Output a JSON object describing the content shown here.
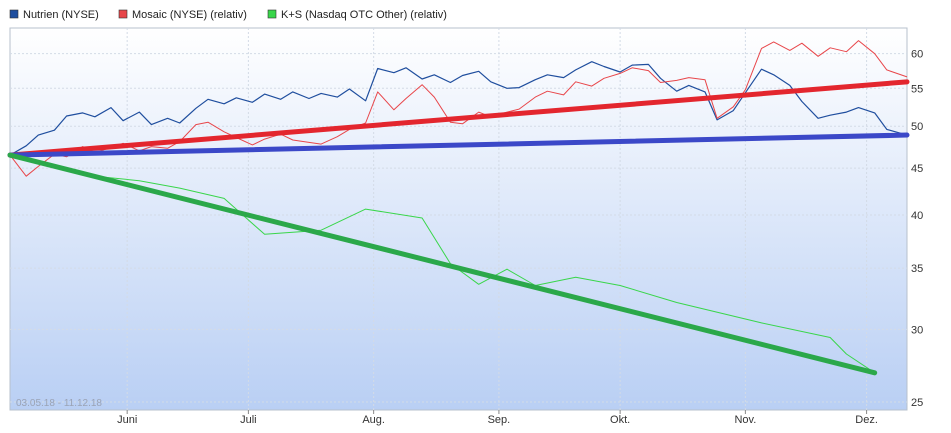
{
  "chart_data": {
    "type": "line",
    "y_scale": "log",
    "ylim": [
      24.5,
      64
    ],
    "yticks": [
      25,
      30,
      35,
      40,
      45,
      50,
      55,
      60
    ],
    "date_range_label": "03.05.18 - 11.12.18",
    "x_range": [
      "2018-05-03",
      "2018-12-11"
    ],
    "months": [
      {
        "label": "Juni",
        "date": "2018-06-01"
      },
      {
        "label": "Juli",
        "date": "2018-07-01"
      },
      {
        "label": "Aug.",
        "date": "2018-08-01"
      },
      {
        "label": "Sep.",
        "date": "2018-09-01"
      },
      {
        "label": "Okt.",
        "date": "2018-10-01"
      },
      {
        "label": "Nov.",
        "date": "2018-11-01"
      },
      {
        "label": "Dez.",
        "date": "2018-12-01"
      }
    ],
    "series": [
      {
        "name": "Nutrien (NYSE)",
        "color": "#1f4e9e",
        "points": [
          [
            "2018-05-03",
            46.5
          ],
          [
            "2018-05-07",
            47.6
          ],
          [
            "2018-05-10",
            48.9
          ],
          [
            "2018-05-14",
            49.5
          ],
          [
            "2018-05-17",
            51.3
          ],
          [
            "2018-05-21",
            51.7
          ],
          [
            "2018-05-24",
            51.2
          ],
          [
            "2018-05-28",
            52.4
          ],
          [
            "2018-05-31",
            50.7
          ],
          [
            "2018-06-04",
            51.8
          ],
          [
            "2018-06-07",
            50.2
          ],
          [
            "2018-06-11",
            51.0
          ],
          [
            "2018-06-14",
            50.4
          ],
          [
            "2018-06-18",
            52.3
          ],
          [
            "2018-06-21",
            53.5
          ],
          [
            "2018-06-25",
            52.9
          ],
          [
            "2018-06-28",
            53.7
          ],
          [
            "2018-07-02",
            53.1
          ],
          [
            "2018-07-05",
            54.2
          ],
          [
            "2018-07-09",
            53.5
          ],
          [
            "2018-07-12",
            54.5
          ],
          [
            "2018-07-16",
            53.6
          ],
          [
            "2018-07-19",
            54.3
          ],
          [
            "2018-07-23",
            53.8
          ],
          [
            "2018-07-26",
            54.9
          ],
          [
            "2018-07-30",
            53.3
          ],
          [
            "2018-08-02",
            57.8
          ],
          [
            "2018-08-06",
            57.2
          ],
          [
            "2018-08-09",
            57.9
          ],
          [
            "2018-08-13",
            56.3
          ],
          [
            "2018-08-16",
            56.9
          ],
          [
            "2018-08-20",
            55.8
          ],
          [
            "2018-08-23",
            56.8
          ],
          [
            "2018-08-27",
            57.4
          ],
          [
            "2018-08-30",
            55.9
          ],
          [
            "2018-09-03",
            55.0
          ],
          [
            "2018-09-06",
            55.1
          ],
          [
            "2018-09-10",
            56.2
          ],
          [
            "2018-09-13",
            56.9
          ],
          [
            "2018-09-17",
            56.5
          ],
          [
            "2018-09-20",
            57.6
          ],
          [
            "2018-09-24",
            58.8
          ],
          [
            "2018-09-27",
            58.1
          ],
          [
            "2018-10-01",
            57.3
          ],
          [
            "2018-10-04",
            58.3
          ],
          [
            "2018-10-08",
            58.4
          ],
          [
            "2018-10-11",
            56.4
          ],
          [
            "2018-10-15",
            54.6
          ],
          [
            "2018-10-18",
            55.4
          ],
          [
            "2018-10-22",
            54.5
          ],
          [
            "2018-10-25",
            50.8
          ],
          [
            "2018-10-29",
            52.0
          ],
          [
            "2018-11-01",
            54.4
          ],
          [
            "2018-11-05",
            57.7
          ],
          [
            "2018-11-08",
            56.9
          ],
          [
            "2018-11-12",
            55.4
          ],
          [
            "2018-11-15",
            53.2
          ],
          [
            "2018-11-19",
            51.0
          ],
          [
            "2018-11-22",
            51.4
          ],
          [
            "2018-11-26",
            51.8
          ],
          [
            "2018-11-29",
            52.4
          ],
          [
            "2018-12-03",
            51.7
          ],
          [
            "2018-12-06",
            49.6
          ],
          [
            "2018-12-11",
            48.9
          ]
        ]
      },
      {
        "name": "Mosaic (NYSE) (relativ)",
        "color": "#e8464a",
        "points": [
          [
            "2018-05-03",
            46.5
          ],
          [
            "2018-05-07",
            44.1
          ],
          [
            "2018-05-10",
            45.2
          ],
          [
            "2018-05-14",
            46.6
          ],
          [
            "2018-05-17",
            46.3
          ],
          [
            "2018-05-21",
            47.5
          ],
          [
            "2018-05-24",
            46.8
          ],
          [
            "2018-05-28",
            47.4
          ],
          [
            "2018-05-31",
            47.9
          ],
          [
            "2018-06-04",
            47.0
          ],
          [
            "2018-06-07",
            47.5
          ],
          [
            "2018-06-11",
            47.3
          ],
          [
            "2018-06-14",
            48.1
          ],
          [
            "2018-06-18",
            50.2
          ],
          [
            "2018-06-21",
            50.5
          ],
          [
            "2018-06-25",
            49.3
          ],
          [
            "2018-06-28",
            48.6
          ],
          [
            "2018-07-02",
            47.7
          ],
          [
            "2018-07-05",
            48.4
          ],
          [
            "2018-07-09",
            49.0
          ],
          [
            "2018-07-12",
            48.3
          ],
          [
            "2018-07-16",
            48.0
          ],
          [
            "2018-07-19",
            47.8
          ],
          [
            "2018-07-23",
            48.7
          ],
          [
            "2018-07-26",
            49.6
          ],
          [
            "2018-07-30",
            50.4
          ],
          [
            "2018-08-02",
            54.5
          ],
          [
            "2018-08-06",
            52.1
          ],
          [
            "2018-08-09",
            53.6
          ],
          [
            "2018-08-13",
            55.5
          ],
          [
            "2018-08-16",
            53.8
          ],
          [
            "2018-08-20",
            50.5
          ],
          [
            "2018-08-23",
            50.3
          ],
          [
            "2018-08-27",
            51.8
          ],
          [
            "2018-08-30",
            51.2
          ],
          [
            "2018-09-03",
            51.8
          ],
          [
            "2018-09-06",
            52.2
          ],
          [
            "2018-09-10",
            53.8
          ],
          [
            "2018-09-13",
            54.6
          ],
          [
            "2018-09-17",
            54.1
          ],
          [
            "2018-09-20",
            55.9
          ],
          [
            "2018-09-24",
            55.3
          ],
          [
            "2018-09-27",
            56.4
          ],
          [
            "2018-10-01",
            57.1
          ],
          [
            "2018-10-04",
            57.9
          ],
          [
            "2018-10-08",
            57.5
          ],
          [
            "2018-10-11",
            55.8
          ],
          [
            "2018-10-15",
            56.1
          ],
          [
            "2018-10-18",
            56.5
          ],
          [
            "2018-10-22",
            56.2
          ],
          [
            "2018-10-25",
            51.0
          ],
          [
            "2018-10-29",
            52.5
          ],
          [
            "2018-11-01",
            54.8
          ],
          [
            "2018-11-05",
            60.8
          ],
          [
            "2018-11-08",
            61.8
          ],
          [
            "2018-11-12",
            60.5
          ],
          [
            "2018-11-15",
            61.6
          ],
          [
            "2018-11-19",
            59.6
          ],
          [
            "2018-11-22",
            60.9
          ],
          [
            "2018-11-26",
            60.3
          ],
          [
            "2018-11-29",
            62.0
          ],
          [
            "2018-12-03",
            60.0
          ],
          [
            "2018-12-06",
            57.6
          ],
          [
            "2018-12-11",
            56.6
          ]
        ]
      },
      {
        "name": "K+S (Nasdaq OTC Other) (relativ)",
        "color": "#39d64a",
        "points": [
          [
            "2018-05-03",
            46.5
          ],
          [
            "2018-05-14",
            45.2
          ],
          [
            "2018-05-24",
            44.1
          ],
          [
            "2018-06-04",
            43.6
          ],
          [
            "2018-06-14",
            42.8
          ],
          [
            "2018-06-25",
            41.7
          ],
          [
            "2018-07-05",
            38.1
          ],
          [
            "2018-07-19",
            38.5
          ],
          [
            "2018-07-30",
            40.6
          ],
          [
            "2018-08-13",
            39.7
          ],
          [
            "2018-08-20",
            35.4
          ],
          [
            "2018-08-27",
            33.6
          ],
          [
            "2018-09-03",
            34.9
          ],
          [
            "2018-09-10",
            33.5
          ],
          [
            "2018-09-20",
            34.2
          ],
          [
            "2018-10-01",
            33.5
          ],
          [
            "2018-10-15",
            32.1
          ],
          [
            "2018-11-05",
            30.5
          ],
          [
            "2018-11-22",
            29.4
          ],
          [
            "2018-11-26",
            28.2
          ],
          [
            "2018-12-03",
            26.9
          ]
        ]
      }
    ],
    "trendlines": [
      {
        "color": "#e3262e",
        "from": [
          "2018-05-03",
          46.5
        ],
        "to": [
          "2018-12-11",
          55.9
        ]
      },
      {
        "color": "#3b48c8",
        "from": [
          "2018-05-03",
          46.5
        ],
        "to": [
          "2018-12-11",
          48.9
        ]
      },
      {
        "color": "#2ba84a",
        "from": [
          "2018-05-03",
          46.5
        ],
        "to": [
          "2018-12-03",
          26.9
        ]
      }
    ],
    "grid": true,
    "legend": "top-left"
  }
}
